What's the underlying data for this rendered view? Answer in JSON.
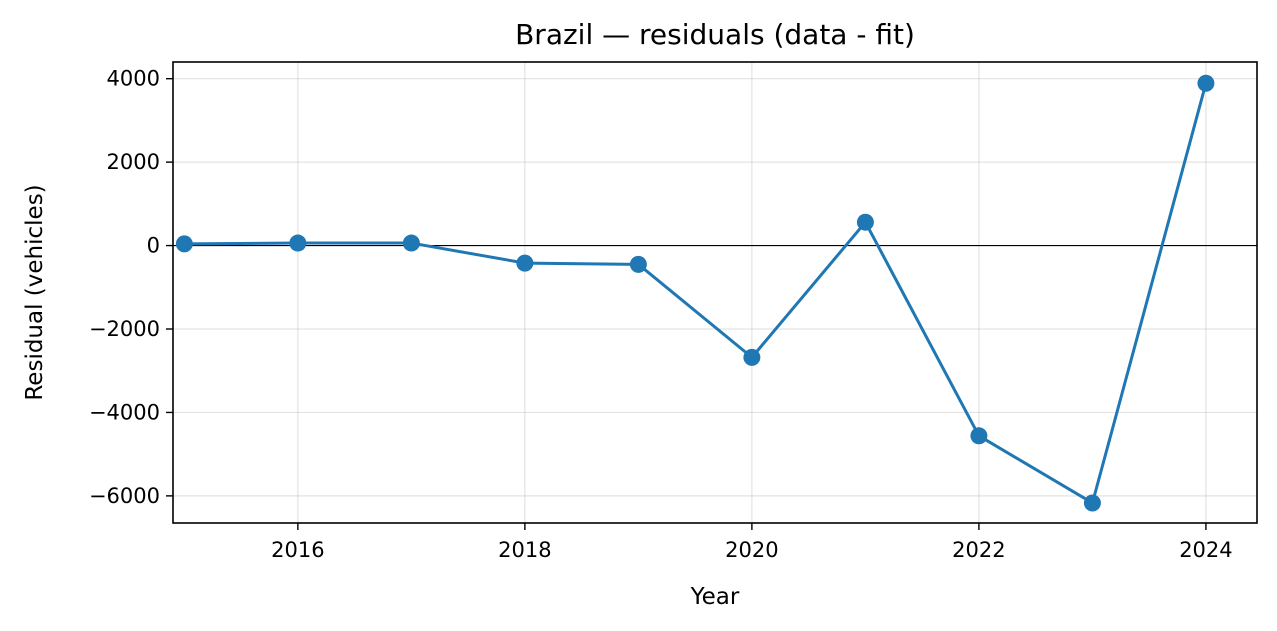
{
  "chart_data": {
    "type": "line",
    "title": "Brazil — residuals (data - fit)",
    "xlabel": "Year",
    "ylabel": "Residual (vehicles)",
    "xlim": [
      2014.9,
      2024.45
    ],
    "ylim": [
      -6650,
      4400
    ],
    "xticks": [
      2016,
      2018,
      2020,
      2022,
      2024
    ],
    "xtick_labels": [
      "2016",
      "2018",
      "2020",
      "2022",
      "2024"
    ],
    "yticks": [
      4000,
      2000,
      0,
      -2000,
      -4000,
      -6000
    ],
    "ytick_labels": [
      "4000",
      "2000",
      "0",
      "−2000",
      "−4000",
      "−6000"
    ],
    "grid": true,
    "zero_line": true,
    "series": [
      {
        "color": "#1f77b4",
        "marker": "circle",
        "x": [
          2015,
          2016,
          2017,
          2018,
          2019,
          2020,
          2021,
          2022,
          2023,
          2024
        ],
        "y": [
          40,
          60,
          60,
          -420,
          -450,
          -2680,
          560,
          -4560,
          -6170,
          3890
        ]
      }
    ]
  }
}
